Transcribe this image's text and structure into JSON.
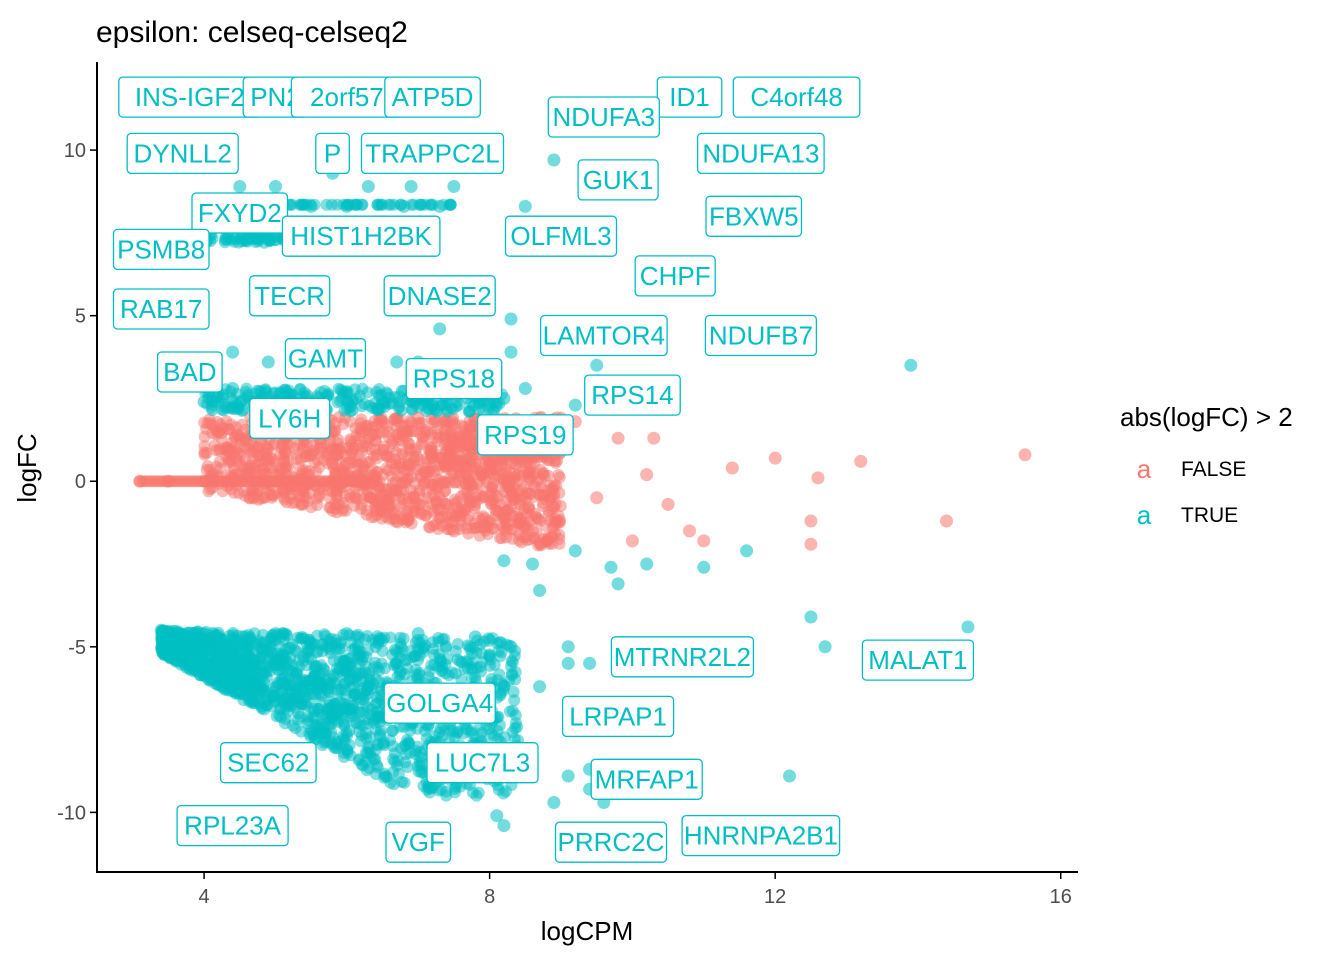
{
  "colors": {
    "false": "#F8766D",
    "true": "#00BFC4",
    "axis": "#000000",
    "tick_text": "#4D4D4D"
  },
  "chart_data": {
    "type": "scatter",
    "title": "epsilon: celseq-celseq2",
    "xlabel": "logCPM",
    "ylabel": "logFC",
    "xlim": [
      2.5,
      16.2
    ],
    "ylim": [
      -11.8,
      12.6
    ],
    "x_ticks": [
      4,
      8,
      12,
      16
    ],
    "x_tick_labels": [
      "4",
      "8",
      "12",
      "16"
    ],
    "y_ticks": [
      -10,
      -5,
      0,
      5,
      10
    ],
    "y_tick_labels": [
      "-10",
      "-5",
      "0",
      "5",
      "10"
    ],
    "grid": false,
    "legend": {
      "title": "abs(logFC) > 2",
      "position": "right",
      "glyph": "a",
      "entries": [
        {
          "label": "FALSE",
          "color": "#F8766D"
        },
        {
          "label": "TRUE",
          "color": "#00BFC4"
        }
      ]
    },
    "series": [
      {
        "name": "FALSE",
        "color": "#F8766D",
        "points": [
          [
            3.1,
            0
          ],
          [
            3.5,
            0
          ],
          [
            4.0,
            0
          ],
          [
            4.5,
            0
          ],
          [
            5.0,
            0
          ],
          [
            5.5,
            0
          ],
          [
            6.0,
            0
          ],
          [
            4.2,
            1.5
          ],
          [
            4.8,
            1.2
          ],
          [
            5.5,
            1.8
          ],
          [
            6.2,
            1.5
          ],
          [
            7.0,
            1.9
          ],
          [
            7.5,
            1.2
          ],
          [
            8.0,
            0.5
          ],
          [
            8.5,
            -0.5
          ],
          [
            6.5,
            -0.8
          ],
          [
            7.5,
            -1.5
          ],
          [
            8.8,
            -1.8
          ],
          [
            9.2,
            1.8
          ],
          [
            9.8,
            1.3
          ],
          [
            10.2,
            0.2
          ],
          [
            10.5,
            -0.7
          ],
          [
            10.8,
            -1.5
          ],
          [
            11.4,
            0.4
          ],
          [
            12.0,
            0.7
          ],
          [
            12.6,
            0.1
          ],
          [
            13.2,
            0.6
          ],
          [
            12.5,
            -1.2
          ],
          [
            12.5,
            -1.9
          ],
          [
            14.4,
            -1.2
          ],
          [
            15.5,
            0.8
          ],
          [
            10.0,
            -1.8
          ],
          [
            9.5,
            -0.5
          ],
          [
            11.0,
            -1.8
          ],
          [
            9.0,
            0.9
          ],
          [
            10.3,
            1.3
          ]
        ]
      },
      {
        "name": "TRUE",
        "color": "#00BFC4",
        "points": [
          [
            4.0,
            8.3
          ],
          [
            4.5,
            8.9
          ],
          [
            5.0,
            8.9
          ],
          [
            5.8,
            9.3
          ],
          [
            6.3,
            8.9
          ],
          [
            6.9,
            8.9
          ],
          [
            7.5,
            8.9
          ],
          [
            4.3,
            7.3
          ],
          [
            5.0,
            7.3
          ],
          [
            5.5,
            8.3
          ],
          [
            6.0,
            8.3
          ],
          [
            6.8,
            8.3
          ],
          [
            7.3,
            8.3
          ],
          [
            8.9,
            9.7
          ],
          [
            8.5,
            8.3
          ],
          [
            7.3,
            4.6
          ],
          [
            8.3,
            4.9
          ],
          [
            4.4,
            3.9
          ],
          [
            4.9,
            3.6
          ],
          [
            6.7,
            3.6
          ],
          [
            7.0,
            3.6
          ],
          [
            8.3,
            3.9
          ],
          [
            9.5,
            3.5
          ],
          [
            13.9,
            3.5
          ],
          [
            4.0,
            2.4
          ],
          [
            5.0,
            2.4
          ],
          [
            6.5,
            2.4
          ],
          [
            8.2,
            2.5
          ],
          [
            9.2,
            2.3
          ],
          [
            4.4,
            2.8
          ],
          [
            7.3,
            2.8
          ],
          [
            8.5,
            2.8
          ],
          [
            8.2,
            -2.4
          ],
          [
            8.6,
            -2.5
          ],
          [
            9.2,
            -2.1
          ],
          [
            10.2,
            -2.5
          ],
          [
            11.6,
            -2.1
          ],
          [
            9.8,
            -3.1
          ],
          [
            8.7,
            -3.3
          ],
          [
            9.7,
            -2.6
          ],
          [
            11.0,
            -2.6
          ],
          [
            12.5,
            -4.1
          ],
          [
            12.7,
            -5.0
          ],
          [
            14.7,
            -4.4
          ],
          [
            9.1,
            -5.0
          ],
          [
            9.1,
            -5.5
          ],
          [
            8.3,
            -5.0
          ],
          [
            8.2,
            -6.2
          ],
          [
            8.7,
            -6.2
          ],
          [
            9.4,
            -5.5
          ],
          [
            8.5,
            -8.2
          ],
          [
            9.1,
            -8.9
          ],
          [
            9.6,
            -9.7
          ],
          [
            9.4,
            -9.3
          ],
          [
            9.4,
            -8.7
          ],
          [
            12.2,
            -8.9
          ],
          [
            8.1,
            -10.1
          ],
          [
            8.2,
            -10.4
          ],
          [
            8.9,
            -9.7
          ],
          [
            3.4,
            -4.5
          ],
          [
            4.0,
            -4.6
          ],
          [
            5.0,
            -4.6
          ],
          [
            6.0,
            -4.6
          ],
          [
            7.0,
            -4.6
          ],
          [
            7.8,
            -4.7
          ],
          [
            8.0,
            -4.8
          ]
        ]
      }
    ],
    "labels": [
      {
        "text": "INS-IGF2",
        "x": 3.8,
        "y": 11.6
      },
      {
        "text": "PN2",
        "x": 5.0,
        "y": 11.6
      },
      {
        "text": "2orf57",
        "x": 6.0,
        "y": 11.6
      },
      {
        "text": "ATP5D",
        "x": 7.2,
        "y": 11.6
      },
      {
        "text": "ID1",
        "x": 10.8,
        "y": 11.6
      },
      {
        "text": "C4orf48",
        "x": 12.3,
        "y": 11.6
      },
      {
        "text": "NDUFA3",
        "x": 9.6,
        "y": 11.0
      },
      {
        "text": "DYNLL2",
        "x": 3.7,
        "y": 9.9
      },
      {
        "text": "P",
        "x": 5.8,
        "y": 9.9
      },
      {
        "text": "TRAPPC2L",
        "x": 7.2,
        "y": 9.9
      },
      {
        "text": "NDUFA13",
        "x": 11.8,
        "y": 9.9
      },
      {
        "text": "GUK1",
        "x": 9.8,
        "y": 9.1
      },
      {
        "text": "FXYD2",
        "x": 4.5,
        "y": 8.1
      },
      {
        "text": "FBXW5",
        "x": 11.7,
        "y": 8.0
      },
      {
        "text": "HIST1H2BK",
        "x": 6.2,
        "y": 7.4
      },
      {
        "text": "OLFML3",
        "x": 9.0,
        "y": 7.4
      },
      {
        "text": "PSMB8",
        "x": 3.4,
        "y": 7.0
      },
      {
        "text": "CHPF",
        "x": 10.6,
        "y": 6.2
      },
      {
        "text": "TECR",
        "x": 5.2,
        "y": 5.6
      },
      {
        "text": "DNASE2",
        "x": 7.3,
        "y": 5.6
      },
      {
        "text": "RAB17",
        "x": 3.4,
        "y": 5.2
      },
      {
        "text": "LAMTOR4",
        "x": 9.6,
        "y": 4.4
      },
      {
        "text": "NDUFB7",
        "x": 11.8,
        "y": 4.4
      },
      {
        "text": "GAMT",
        "x": 5.7,
        "y": 3.7
      },
      {
        "text": "BAD",
        "x": 3.8,
        "y": 3.3
      },
      {
        "text": "RPS18",
        "x": 7.5,
        "y": 3.1
      },
      {
        "text": "RPS14",
        "x": 10.0,
        "y": 2.6
      },
      {
        "text": "LY6H",
        "x": 5.2,
        "y": 1.9
      },
      {
        "text": "RPS19",
        "x": 8.5,
        "y": 1.4
      },
      {
        "text": "MTRNR2L2",
        "x": 10.7,
        "y": -5.3
      },
      {
        "text": "MALAT1",
        "x": 14.0,
        "y": -5.4
      },
      {
        "text": "GOLGA4",
        "x": 7.3,
        "y": -6.7
      },
      {
        "text": "LRPAP1",
        "x": 9.8,
        "y": -7.1
      },
      {
        "text": "SEC62",
        "x": 4.9,
        "y": -8.5
      },
      {
        "text": "LUC7L3",
        "x": 7.9,
        "y": -8.5
      },
      {
        "text": "MRFAP1",
        "x": 10.2,
        "y": -9.0
      },
      {
        "text": "RPL23A",
        "x": 4.4,
        "y": -10.4
      },
      {
        "text": "HNRNPA2B1",
        "x": 11.8,
        "y": -10.7
      },
      {
        "text": "VGF",
        "x": 7.0,
        "y": -10.9
      },
      {
        "text": "PRRC2C",
        "x": 9.7,
        "y": -10.9
      }
    ]
  }
}
